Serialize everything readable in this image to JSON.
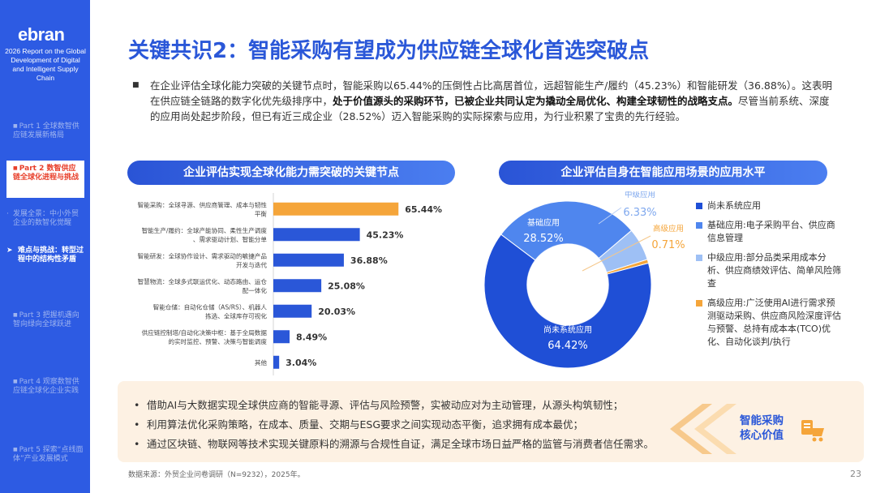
{
  "sidebar": {
    "logo": "ebran",
    "report_title": "2026 Report on the Global Development of Digital and Intelligent Supply Chain",
    "nav": {
      "part1": "Part 1 全球数智供应链发展新格局",
      "part2": "Part 2 数智供应链全球化进程与挑战",
      "sub1": "发展全景：中小外贸企业的数智化觉醒",
      "sub2": "难点与挑战：转型过程中的结构性矛盾",
      "part3": "Part 3 把握机遇向智向绿向全球跃进",
      "part4": "Part 4 观察数智供应链全球化企业实践",
      "part5": "Part 5 探索“点线面体”产业发展模式"
    }
  },
  "title": "关键共识2：智能采购有望成为供应链全球化首选突破点",
  "intro": {
    "part1": "在企业评估全球化能力突破的关键节点时，智能采购以65.44%的压倒性占比高居首位，远超智能生产/履约（45.23%）和智能研发（36.88%）。这表明在供应链全链路的数字化优先级排序中，",
    "bold": "处于价值源头的采购环节，已被企业共同认定为撬动全局优化、构建全球韧性的战略支点。",
    "part2": "尽管当前系统、深度的应用尚处起步阶段，但已有近三成企业（28.52%）迈入智能采购的实际探索与应用，为行业积累了宝贵的先行经验。"
  },
  "left_header": "企业评估实现全球化能力需突破的关键节点",
  "right_header": "企业评估自身在智能应用场景的应用水平",
  "chart_data": [
    {
      "type": "bar",
      "title": "企业评估实现全球化能力需突破的关键节点",
      "orientation": "horizontal",
      "categories": [
        "智能采购：全球寻源、供应商管理、成本与韧性平衡",
        "智能生产/履约：全球产能协同、柔性生产调度、需求驱动计划、智能分单",
        "智能研发：全球协作设计、需求驱动的敏捷产品开发与迭代",
        "智慧物流：全球多式联运优化、动态路由、运仓配一体化",
        "智能仓储：自动化仓储（AS/RS）、机器人拣选、全球库存可视化",
        "供应链控制塔/自动化决策中枢：基于全局数据的实时监控、预警、决策与智能调度",
        "其他"
      ],
      "values": [
        65.44,
        45.23,
        36.88,
        25.08,
        20.03,
        8.49,
        3.04
      ],
      "value_labels": [
        "65.44%",
        "45.23%",
        "36.88%",
        "25.08%",
        "20.03%",
        "8.49%",
        "3.04%"
      ],
      "colors": [
        "#f5a53a",
        "#2a57d8",
        "#2a57d8",
        "#2a57d8",
        "#2a57d8",
        "#2a57d8",
        "#2a57d8"
      ],
      "xlim": [
        0,
        70
      ],
      "grid": false
    },
    {
      "type": "pie",
      "title": "企业评估自身在智能应用场景的应用水平",
      "donut": true,
      "categories": [
        "尚未系统应用",
        "基础应用",
        "中级应用",
        "高级应用"
      ],
      "values": [
        64.42,
        28.52,
        6.33,
        0.71
      ],
      "value_labels": [
        "64.42%",
        "28.52%",
        "6.33%",
        "0.71%"
      ],
      "colors": [
        "#1f4fd6",
        "#4f86ee",
        "#9ec0f5",
        "#f5a53a"
      ]
    }
  ],
  "legend": [
    {
      "text": "尚未系统应用",
      "color": "#1f4fd6"
    },
    {
      "text": "基础应用:电子采购平台、供应商信息管理",
      "color": "#4f86ee"
    },
    {
      "text": "中级应用:部分品类采用成本分析、供应商绩效评估、简单风险筛查",
      "color": "#9ec0f5"
    },
    {
      "text": "高级应用:广泛使用AI进行需求预测驱动采购、供应商风险深度评估与预警、总持有成本本(TCO)优化、自动化谈判/执行",
      "color": "#f5a53a"
    }
  ],
  "bottom": {
    "items": [
      "借助AI与大数据实现全球供应商的智能寻源、评估与风险预警，实被动应对为主动管理，从源头构筑韧性；",
      "利用算法优化采购策略，在成本、质量、交期与ESG要求之间实现动态平衡，追求拥有成本最优；",
      "通过区块链、物联网等技术实现关键原料的溯源与合规性自证，满足全球市场日益严格的监管与消费者信任需求。"
    ],
    "core_label_1": "智能采购",
    "core_label_2": "核心价值"
  },
  "source": "数据来源：外贸企业问卷调研（N=9232），2025年。",
  "page_number": "23"
}
